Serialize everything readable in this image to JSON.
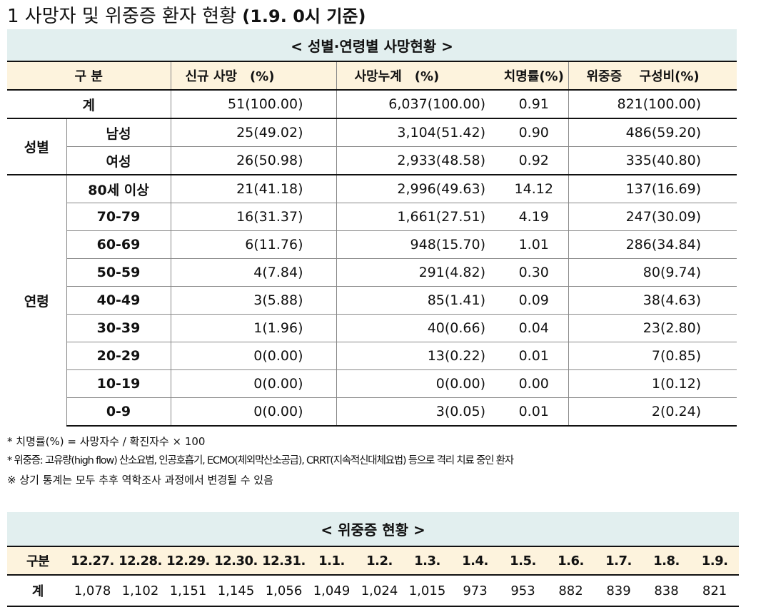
{
  "page_title": "1 사망자 및 위중증 환자 현황",
  "page_title_bold": "(1.9. 0시 기준)",
  "table1": {
    "banner": "< 성별·연령별 사망현황 >",
    "headers": {
      "category": "구 분",
      "new_deaths": "신규 사망　(%)",
      "cum_deaths": "사망누계　(%)",
      "cfr": "치명률(%)",
      "critical": "위중증　 구성비(%)"
    },
    "total": {
      "label": "계",
      "new": "51(100.00)",
      "cum": "6,037(100.00)",
      "cfr": "0.91",
      "crit": "821(100.00)"
    },
    "sex_group": "성별",
    "sex_rows": [
      {
        "label": "남성",
        "new": "25(49.02)",
        "cum": "3,104(51.42)",
        "cfr": "0.90",
        "crit": "486(59.20)"
      },
      {
        "label": "여성",
        "new": "26(50.98)",
        "cum": "2,933(48.58)",
        "cfr": "0.92",
        "crit": "335(40.80)"
      }
    ],
    "age_group": "연령",
    "age_rows": [
      {
        "label": "80세 이상",
        "new": "21(41.18)",
        "cum": "2,996(49.63)",
        "cfr": "14.12",
        "crit": "137(16.69)"
      },
      {
        "label": "70-79",
        "new": "16(31.37)",
        "cum": "1,661(27.51)",
        "cfr": "4.19",
        "crit": "247(30.09)"
      },
      {
        "label": "60-69",
        "new": "6(11.76)",
        "cum": "948(15.70)",
        "cfr": "1.01",
        "crit": "286(34.84)"
      },
      {
        "label": "50-59",
        "new": "4(7.84)",
        "cum": "291(4.82)",
        "cfr": "0.30",
        "crit": "80(9.74)"
      },
      {
        "label": "40-49",
        "new": "3(5.88)",
        "cum": "85(1.41)",
        "cfr": "0.09",
        "crit": "38(4.63)"
      },
      {
        "label": "30-39",
        "new": "1(1.96)",
        "cum": "40(0.66)",
        "cfr": "0.04",
        "crit": "23(2.80)"
      },
      {
        "label": "20-29",
        "new": "0(0.00)",
        "cum": "13(0.22)",
        "cfr": "0.01",
        "crit": "7(0.85)"
      },
      {
        "label": "10-19",
        "new": "0(0.00)",
        "cum": "0(0.00)",
        "cfr": "0.00",
        "crit": "1(0.12)"
      },
      {
        "label": "0-9",
        "new": "0(0.00)",
        "cum": "3(0.05)",
        "cfr": "0.01",
        "crit": "2(0.24)"
      }
    ]
  },
  "notes": [
    "* 치명률(%) = 사망자수 / 확진자수 × 100",
    "* 위중증: 고유량(high flow) 산소요법, 인공호흡기, ECMO(체외막산소공급), CRRT(지속적신대체요법) 등으로 격리 치료 중인 환자",
    "※ 상기 통계는 모두 추후 역학조사 과정에서 변경될 수 있음"
  ],
  "table2": {
    "banner": "< 위중증 현황 >",
    "header_label": "구분",
    "dates": [
      "12.27.",
      "12.28.",
      "12.29.",
      "12.30.",
      "12.31.",
      "1.1.",
      "1.2.",
      "1.3.",
      "1.4.",
      "1.5.",
      "1.6.",
      "1.7.",
      "1.8.",
      "1.9."
    ],
    "row_label": "계",
    "values": [
      "1,078",
      "1,102",
      "1,151",
      "1,145",
      "1,056",
      "1,049",
      "1,024",
      "1,015",
      "973",
      "953",
      "882",
      "839",
      "838",
      "821"
    ]
  }
}
